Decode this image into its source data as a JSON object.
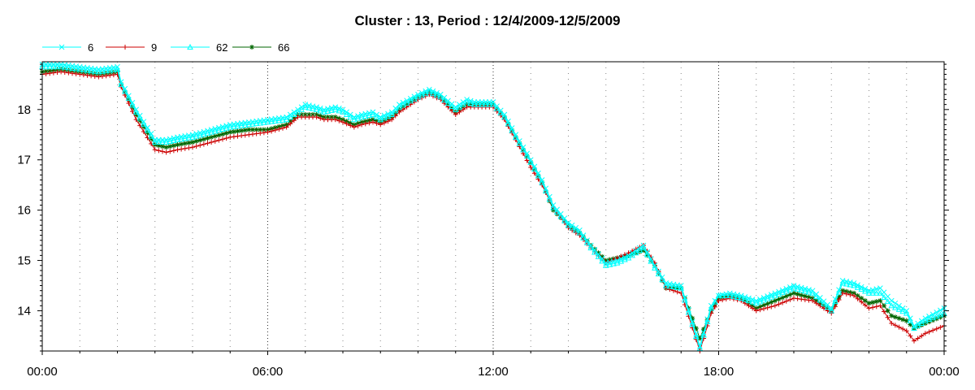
{
  "chart_data": {
    "type": "line",
    "title": "Cluster : 13, Period : 12/4/2009-12/5/2009",
    "xlabel": "",
    "ylabel": "",
    "x_unit": "hours",
    "xlim": [
      0,
      24
    ],
    "ylim": [
      13.2,
      18.95
    ],
    "x_ticks": [
      {
        "value": 0,
        "label": "00:00"
      },
      {
        "value": 6,
        "label": "06:00"
      },
      {
        "value": 12,
        "label": "12:00"
      },
      {
        "value": 18,
        "label": "18:00"
      },
      {
        "value": 24,
        "label": "00:00"
      }
    ],
    "y_ticks": [
      {
        "value": 14,
        "label": "14"
      },
      {
        "value": 15,
        "label": "15"
      },
      {
        "value": 16,
        "label": "16"
      },
      {
        "value": 17,
        "label": "17"
      },
      {
        "value": 18,
        "label": "18"
      }
    ],
    "grid": true,
    "legend_position": "top-left",
    "series": [
      {
        "name": "6",
        "color": "#00ffff",
        "marker": "x",
        "x": [
          0,
          0.5,
          1,
          1.5,
          2,
          2.1,
          2.5,
          3,
          3.3,
          3.6,
          4,
          4.5,
          5,
          5.5,
          6,
          6.5,
          6.8,
          7,
          7.3,
          7.5,
          7.8,
          8,
          8.3,
          8.5,
          8.8,
          9,
          9.3,
          9.5,
          10,
          10.3,
          10.6,
          11,
          11.3,
          11.5,
          12,
          12.3,
          12.6,
          13,
          13.3,
          13.6,
          14,
          14.3,
          14.6,
          15,
          15.3,
          15.6,
          16,
          16.3,
          16.6,
          17,
          17.5,
          17.8,
          18,
          18.3,
          18.6,
          19,
          19.5,
          20,
          20.5,
          21,
          21.3,
          21.6,
          22,
          22.3,
          22.6,
          23,
          23.2,
          23.5,
          24
        ],
        "y": [
          18.9,
          18.9,
          18.85,
          18.8,
          18.85,
          18.55,
          18.0,
          17.4,
          17.4,
          17.45,
          17.5,
          17.6,
          17.7,
          17.75,
          17.8,
          17.85,
          18.0,
          18.1,
          18.05,
          18.0,
          18.05,
          18.0,
          17.85,
          17.9,
          17.95,
          17.85,
          17.95,
          18.1,
          18.3,
          18.4,
          18.3,
          18.05,
          18.2,
          18.15,
          18.15,
          17.9,
          17.5,
          17.0,
          16.6,
          16.1,
          15.75,
          15.6,
          15.3,
          14.95,
          15.0,
          15.1,
          15.3,
          14.9,
          14.55,
          14.5,
          13.3,
          14.1,
          14.3,
          14.35,
          14.3,
          14.2,
          14.35,
          14.5,
          14.4,
          14.05,
          14.6,
          14.55,
          14.4,
          14.45,
          14.2,
          14.0,
          13.7,
          13.85,
          14.05
        ]
      },
      {
        "name": "9",
        "color": "#cc0000",
        "marker": "+",
        "x": [
          0,
          0.5,
          1,
          1.5,
          2,
          2.1,
          2.5,
          3,
          3.3,
          3.6,
          4,
          4.5,
          5,
          5.5,
          6,
          6.5,
          6.8,
          7,
          7.3,
          7.5,
          7.8,
          8,
          8.3,
          8.5,
          8.8,
          9,
          9.3,
          9.5,
          10,
          10.3,
          10.6,
          11,
          11.3,
          11.5,
          12,
          12.3,
          12.6,
          13,
          13.3,
          13.6,
          14,
          14.3,
          14.6,
          15,
          15.3,
          15.6,
          16,
          16.3,
          16.6,
          17,
          17.5,
          17.8,
          18,
          18.3,
          18.6,
          19,
          19.5,
          20,
          20.5,
          21,
          21.3,
          21.6,
          22,
          22.3,
          22.6,
          23,
          23.2,
          23.5,
          24
        ],
        "y": [
          18.7,
          18.75,
          18.7,
          18.65,
          18.7,
          18.45,
          17.8,
          17.2,
          17.15,
          17.2,
          17.25,
          17.35,
          17.45,
          17.5,
          17.55,
          17.65,
          17.85,
          17.85,
          17.85,
          17.8,
          17.8,
          17.75,
          17.65,
          17.7,
          17.75,
          17.7,
          17.8,
          17.95,
          18.2,
          18.3,
          18.2,
          17.9,
          18.05,
          18.05,
          18.05,
          17.8,
          17.4,
          16.85,
          16.5,
          16.05,
          15.65,
          15.5,
          15.25,
          14.95,
          15.05,
          15.15,
          15.3,
          14.95,
          14.45,
          14.35,
          13.2,
          13.95,
          14.2,
          14.25,
          14.2,
          14.0,
          14.1,
          14.25,
          14.2,
          13.95,
          14.35,
          14.3,
          14.05,
          14.1,
          13.75,
          13.6,
          13.4,
          13.55,
          13.7
        ]
      },
      {
        "name": "62",
        "color": "#00ffff",
        "marker": "triangle",
        "x": [
          0,
          0.5,
          1,
          1.5,
          2,
          2.1,
          2.5,
          3,
          3.3,
          3.6,
          4,
          4.5,
          5,
          5.5,
          6,
          6.5,
          6.8,
          7,
          7.3,
          7.5,
          7.8,
          8,
          8.3,
          8.5,
          8.8,
          9,
          9.3,
          9.5,
          10,
          10.3,
          10.6,
          11,
          11.3,
          11.5,
          12,
          12.3,
          12.6,
          13,
          13.3,
          13.6,
          14,
          14.3,
          14.6,
          15,
          15.3,
          15.6,
          16,
          16.3,
          16.6,
          17,
          17.5,
          17.8,
          18,
          18.3,
          18.6,
          19,
          19.5,
          20,
          20.5,
          21,
          21.3,
          21.6,
          22,
          22.3,
          22.6,
          23,
          23.2,
          23.5,
          24
        ],
        "y": [
          18.85,
          18.85,
          18.8,
          18.75,
          18.8,
          18.5,
          17.95,
          17.35,
          17.35,
          17.4,
          17.45,
          17.55,
          17.65,
          17.7,
          17.75,
          17.8,
          17.95,
          18.05,
          18.0,
          17.95,
          18.0,
          17.95,
          17.8,
          17.85,
          17.9,
          17.8,
          17.9,
          18.05,
          18.25,
          18.35,
          18.25,
          18.0,
          18.15,
          18.1,
          18.1,
          17.85,
          17.45,
          16.95,
          16.55,
          16.05,
          15.7,
          15.55,
          15.25,
          14.9,
          14.95,
          15.05,
          15.25,
          14.85,
          14.5,
          14.45,
          13.25,
          14.05,
          14.3,
          14.3,
          14.25,
          14.15,
          14.3,
          14.45,
          14.35,
          14.0,
          14.55,
          14.5,
          14.35,
          14.35,
          14.1,
          13.95,
          13.65,
          13.8,
          13.95
        ]
      },
      {
        "name": "66",
        "color": "#006600",
        "marker": "star",
        "x": [
          0,
          0.5,
          1,
          1.5,
          2,
          2.1,
          2.5,
          3,
          3.3,
          3.6,
          4,
          4.5,
          5,
          5.5,
          6,
          6.5,
          6.8,
          7,
          7.3,
          7.5,
          7.8,
          8,
          8.3,
          8.5,
          8.8,
          9,
          9.3,
          9.5,
          10,
          10.3,
          10.6,
          11,
          11.3,
          11.5,
          12,
          12.3,
          12.6,
          13,
          13.3,
          13.6,
          14,
          14.3,
          14.6,
          15,
          15.3,
          15.6,
          16,
          16.3,
          16.6,
          17,
          17.5,
          17.8,
          18,
          18.3,
          18.6,
          19,
          19.5,
          20,
          20.5,
          21,
          21.3,
          21.6,
          22,
          22.3,
          22.6,
          23,
          23.2,
          23.5,
          24
        ],
        "y": [
          18.75,
          18.8,
          18.75,
          18.7,
          18.75,
          18.5,
          17.9,
          17.3,
          17.25,
          17.3,
          17.35,
          17.45,
          17.55,
          17.6,
          17.6,
          17.7,
          17.9,
          17.9,
          17.9,
          17.85,
          17.85,
          17.8,
          17.7,
          17.75,
          17.8,
          17.75,
          17.85,
          18.0,
          18.25,
          18.35,
          18.25,
          17.95,
          18.1,
          18.1,
          18.1,
          17.85,
          17.45,
          16.95,
          16.55,
          16.0,
          15.7,
          15.55,
          15.3,
          15.0,
          15.05,
          15.1,
          15.2,
          14.9,
          14.45,
          14.45,
          13.45,
          14.0,
          14.25,
          14.3,
          14.25,
          14.05,
          14.2,
          14.35,
          14.25,
          14.0,
          14.4,
          14.35,
          14.15,
          14.2,
          13.9,
          13.8,
          13.65,
          13.75,
          13.9
        ]
      }
    ]
  }
}
